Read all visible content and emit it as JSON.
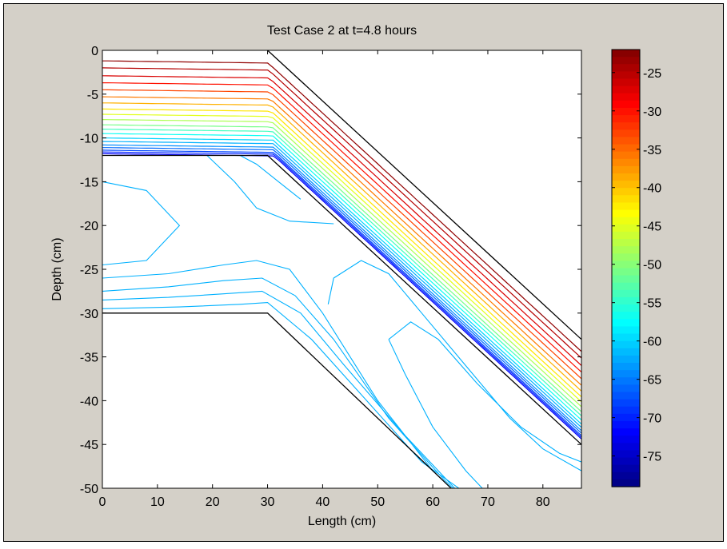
{
  "chart_data": {
    "type": "contour",
    "title": "Test Case 2 at t=4.8 hours",
    "xlabel": "Length (cm)",
    "ylabel": "Depth (cm)",
    "xlim": [
      0,
      87
    ],
    "ylim": [
      -50,
      0
    ],
    "x_ticks": [
      0,
      10,
      20,
      30,
      40,
      50,
      60,
      70,
      80
    ],
    "y_ticks": [
      0,
      -5,
      -10,
      -15,
      -20,
      -25,
      -30,
      -35,
      -40,
      -45,
      -50
    ],
    "grid": false,
    "colorbar": {
      "range": [
        -79,
        -22
      ],
      "ticks": [
        -25,
        -30,
        -35,
        -40,
        -45,
        -50,
        -55,
        -60,
        -65,
        -70,
        -75
      ],
      "colormap": "jet",
      "placement": "right"
    },
    "boundaries": [
      {
        "x": [
          30,
          87
        ],
        "y": [
          0,
          -33
        ]
      },
      {
        "x": [
          0,
          30,
          87
        ],
        "y": [
          -12,
          -12,
          -45
        ]
      },
      {
        "x": [
          0,
          30,
          80
        ],
        "y": [
          -30,
          -30,
          -60
        ]
      }
    ],
    "contour_family_upper": {
      "description_levels": "contours hugging the surface boundary from -25 down to -75",
      "offsets": [
        -1.2,
        -2.0,
        -2.9,
        -3.7,
        -4.5,
        -5.3,
        -6.0,
        -6.7,
        -7.3,
        -7.9,
        -8.5,
        -9.0,
        -9.5,
        -10.0,
        -10.4,
        -10.8,
        -11.1,
        -11.4,
        -11.6,
        -11.8
      ],
      "levels": [
        -23,
        -25,
        -27,
        -30,
        -33,
        -36,
        -39,
        -42,
        -45,
        -48,
        -51,
        -54,
        -57,
        -60,
        -62,
        -64,
        -66,
        -68,
        -70,
        -72
      ]
    }
  }
}
